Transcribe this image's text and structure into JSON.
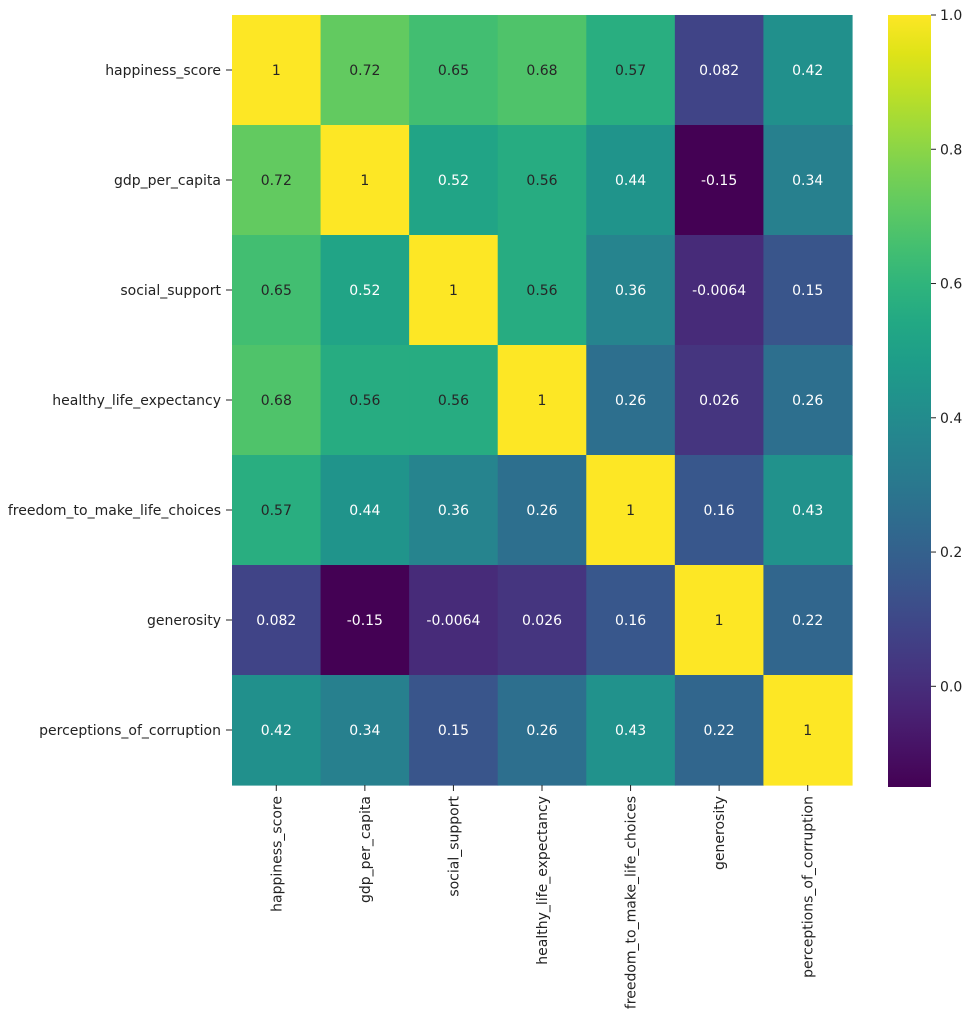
{
  "chart_data": {
    "type": "heatmap",
    "title": "",
    "xlabel": "",
    "ylabel": "",
    "colormap": "viridis",
    "vmin": -0.15,
    "vmax": 1.0,
    "row_labels": [
      "happiness_score",
      "gdp_per_capita",
      "social_support",
      "healthy_life_expectancy",
      "freedom_to_make_life_choices",
      "generosity",
      "perceptions_of_corruption"
    ],
    "col_labels": [
      "happiness_score",
      "gdp_per_capita",
      "social_support",
      "healthy_life_expectancy",
      "freedom_to_make_life_choices",
      "generosity",
      "perceptions_of_corruption"
    ],
    "values": [
      [
        1,
        0.72,
        0.65,
        0.68,
        0.57,
        0.082,
        0.42
      ],
      [
        0.72,
        1,
        0.52,
        0.56,
        0.44,
        -0.15,
        0.34
      ],
      [
        0.65,
        0.52,
        1,
        0.56,
        0.36,
        -0.0064,
        0.15
      ],
      [
        0.68,
        0.56,
        0.56,
        1,
        0.26,
        0.026,
        0.26
      ],
      [
        0.57,
        0.44,
        0.36,
        0.26,
        1,
        0.16,
        0.43
      ],
      [
        0.082,
        -0.15,
        -0.0064,
        0.026,
        0.16,
        1,
        0.22
      ],
      [
        0.42,
        0.34,
        0.15,
        0.26,
        0.43,
        0.22,
        1
      ]
    ],
    "annotations": [
      [
        "1",
        "0.72",
        "0.65",
        "0.68",
        "0.57",
        "0.082",
        "0.42"
      ],
      [
        "0.72",
        "1",
        "0.52",
        "0.56",
        "0.44",
        "-0.15",
        "0.34"
      ],
      [
        "0.65",
        "0.52",
        "1",
        "0.56",
        "0.36",
        "-0.0064",
        "0.15"
      ],
      [
        "0.68",
        "0.56",
        "0.56",
        "1",
        "0.26",
        "0.026",
        "0.26"
      ],
      [
        "0.57",
        "0.44",
        "0.36",
        "0.26",
        "1",
        "0.16",
        "0.43"
      ],
      [
        "0.082",
        "-0.15",
        "-0.0064",
        "0.026",
        "0.16",
        "1",
        "0.22"
      ],
      [
        "0.42",
        "0.34",
        "0.15",
        "0.26",
        "0.43",
        "0.22",
        "1"
      ]
    ],
    "colorbar": {
      "ticks": [
        0.0,
        0.2,
        0.4,
        0.6,
        0.8,
        1.0
      ],
      "tick_labels": [
        "0.0",
        "0.2",
        "0.4",
        "0.6",
        "0.8",
        "1.0"
      ]
    }
  }
}
